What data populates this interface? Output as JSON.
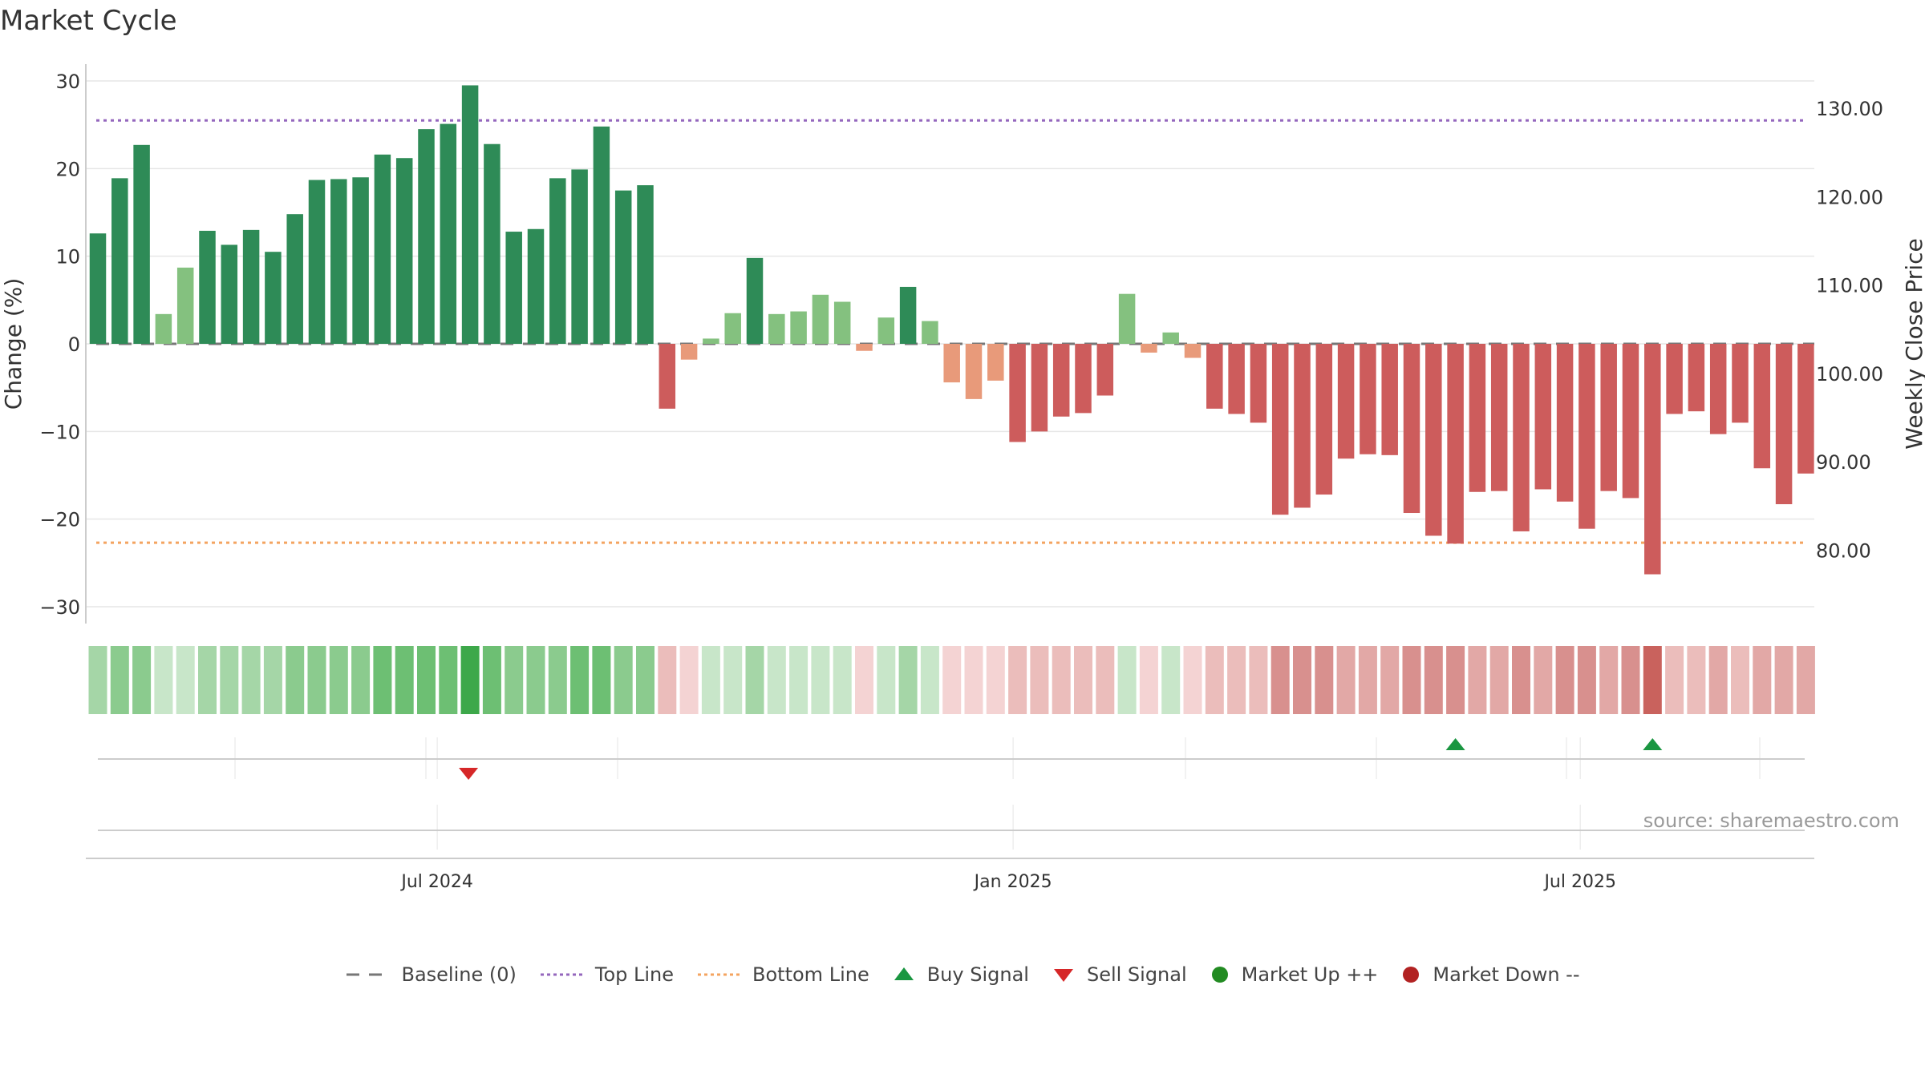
{
  "title": "Market Cycle",
  "source": "source: sharemaestro.com",
  "chart_data": {
    "type": "bar",
    "title": "Market Cycle",
    "ylabel": "Change (%)",
    "y2label": "Weekly Close Price",
    "ylim": [
      -30,
      30
    ],
    "y2lim": [
      73.5,
      135
    ],
    "yticks": [
      30,
      20,
      10,
      0,
      -10,
      -20,
      -30
    ],
    "ytick_labels": [
      "30",
      "20",
      "10",
      "0",
      "−10",
      "−20",
      "−30"
    ],
    "y2ticks": [
      130,
      120,
      110,
      100,
      90,
      80
    ],
    "y2tick_labels": [
      "130.00",
      "120.00",
      "110.00",
      "100.00",
      "90.00",
      "80.00"
    ],
    "xtick_labels": [
      "Jul 2024",
      "Jan 2025",
      "Jul 2025"
    ],
    "xtick_week_index": [
      15.5,
      41.8,
      67.7
    ],
    "top_line": 25.5,
    "bottom_line": -22.7,
    "baseline": 0,
    "values": [
      12.6,
      18.9,
      22.7,
      3.4,
      8.7,
      12.9,
      11.3,
      13.0,
      10.5,
      14.8,
      18.7,
      18.8,
      19.0,
      21.6,
      21.2,
      24.5,
      25.1,
      29.5,
      22.8,
      12.8,
      13.1,
      18.9,
      19.9,
      24.8,
      17.5,
      18.1,
      -7.4,
      -1.8,
      0.6,
      3.5,
      9.8,
      3.4,
      3.7,
      5.6,
      4.8,
      -0.8,
      3.0,
      6.5,
      2.6,
      -4.4,
      -6.3,
      -4.2,
      -11.2,
      -10.0,
      -8.3,
      -7.9,
      -5.9,
      5.7,
      -1.0,
      1.3,
      -1.6,
      -7.4,
      -8.0,
      -9.0,
      -19.5,
      -18.7,
      -17.2,
      -13.1,
      -12.6,
      -12.7,
      -19.3,
      -21.9,
      -22.8,
      -16.9,
      -16.8,
      -21.4,
      -16.6,
      -18.0,
      -21.1,
      -16.8,
      -17.6,
      -26.3,
      -8.0,
      -7.7,
      -10.3,
      -9.0,
      -14.2,
      -18.3,
      -14.8
    ],
    "heat_level": [
      2,
      3,
      3,
      1,
      1,
      2,
      2,
      2,
      2,
      3,
      3,
      3,
      3,
      4,
      4,
      4,
      4,
      5,
      4,
      3,
      3,
      3,
      4,
      4,
      3,
      3,
      -2,
      -1,
      1,
      1,
      2,
      1,
      1,
      1,
      1,
      -1,
      1,
      2,
      1,
      -1,
      -1,
      -1,
      -2,
      -2,
      -2,
      -2,
      -2,
      1,
      -1,
      1,
      -1,
      -2,
      -2,
      -2,
      -4,
      -4,
      -4,
      -3,
      -3,
      -3,
      -4,
      -4,
      -4,
      -3,
      -3,
      -4,
      -3,
      -4,
      -4,
      -3,
      -4,
      -5,
      -2,
      -2,
      -3,
      -2,
      -3,
      -3,
      -3
    ],
    "buy_signal_weeks": [
      62,
      71
    ],
    "sell_signal_weeks": [
      17
    ],
    "colors": {
      "up_strong": "#2e8b57",
      "up_light": "#84c17f",
      "down_strong": "#cd5c5c",
      "down_light": "#e89a7a",
      "top_line": "#9467bd",
      "bottom_line": "#f4a460",
      "baseline": "#777777",
      "buy": "#1a9641",
      "sell": "#d62728",
      "market_up": "#228b22",
      "market_down": "#b22222"
    },
    "legend": [
      {
        "id": "baseline",
        "label": "Baseline (0)"
      },
      {
        "id": "top",
        "label": "Top Line"
      },
      {
        "id": "bottom",
        "label": "Bottom Line"
      },
      {
        "id": "buy",
        "label": "Buy Signal"
      },
      {
        "id": "sell",
        "label": "Sell Signal"
      },
      {
        "id": "up",
        "label": "Market Up ++"
      },
      {
        "id": "down",
        "label": "Market Down --"
      }
    ]
  }
}
